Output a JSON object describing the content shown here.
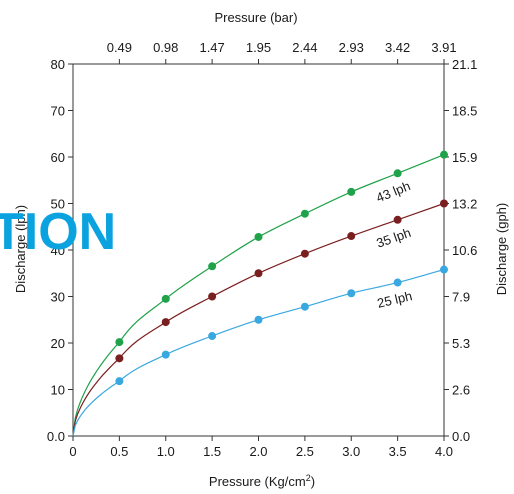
{
  "chart_data": {
    "type": "line",
    "xlabel_bottom": "Pressure (Kg/cm",
    "xlabel_bottom_sup": "2",
    "xlabel_bottom_close": ")",
    "xlabel_top": "Pressure (bar)",
    "ylabel_left": "Discharge (lph)",
    "ylabel_right": "Discharge (gph)",
    "xlim": [
      0,
      4.0
    ],
    "ylim": [
      0,
      80
    ],
    "x_ticks": [
      "0",
      "0.5",
      "1.0",
      "1.5",
      "2.0",
      "2.5",
      "3.0",
      "3.5",
      "4.0"
    ],
    "y_ticks": [
      "0.0",
      "10",
      "20",
      "30",
      "40",
      "50",
      "60",
      "70",
      "80"
    ],
    "top_ticks": [
      "0.49",
      "0.98",
      "1.47",
      "1.95",
      "2.44",
      "2.93",
      "3.42",
      "3.91"
    ],
    "right_ticks": [
      "0.0",
      "2.6",
      "5.3",
      "7.9",
      "10.6",
      "13.2",
      "15.9",
      "18.5",
      "21.1"
    ],
    "x": [
      0.5,
      1.0,
      1.5,
      2.0,
      2.5,
      3.0,
      3.5,
      4.0
    ],
    "series": [
      {
        "name": "43 lph",
        "color": "#1fa24a",
        "values": [
          20.2,
          29.5,
          36.5,
          42.8,
          47.8,
          52.5,
          56.5,
          60.5
        ]
      },
      {
        "name": "35 lph",
        "color": "#7a1f1f",
        "values": [
          16.7,
          24.5,
          30.0,
          35.0,
          39.2,
          43.0,
          46.5,
          50.0
        ]
      },
      {
        "name": "25 lph",
        "color": "#3aa8e0",
        "values": [
          11.8,
          17.5,
          21.5,
          25.0,
          27.8,
          30.7,
          33.0,
          35.8
        ]
      }
    ],
    "grid": false
  },
  "banner": {
    "text": "TION",
    "color": "#0aa3e0"
  }
}
